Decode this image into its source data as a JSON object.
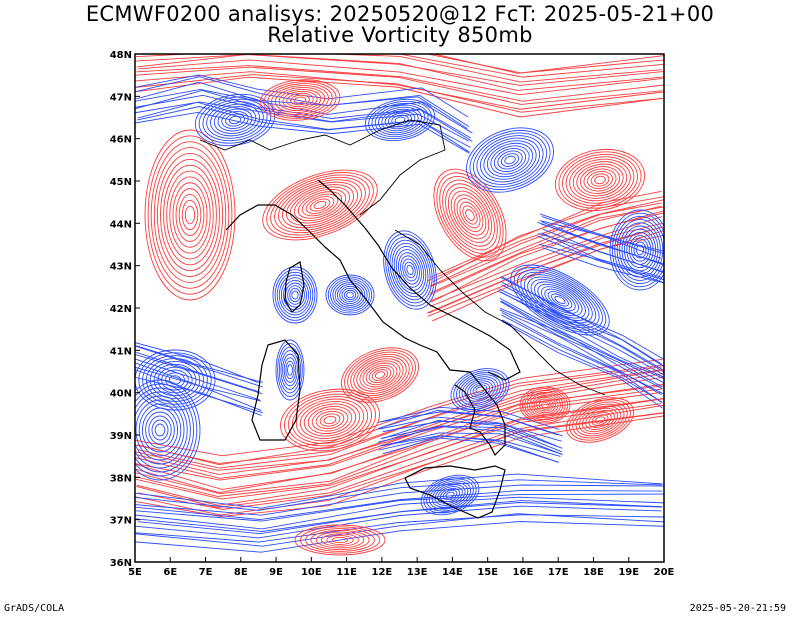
{
  "header": {
    "line1": "ECMWF0200 analisys: 20250520@12 FcT: 2025-05-21+00",
    "line2": "Relative Vorticity 850mb"
  },
  "map": {
    "lon_range": [
      5,
      20
    ],
    "lat_range": [
      36,
      48
    ],
    "lon_ticks": [
      "5E",
      "6E",
      "7E",
      "8E",
      "9E",
      "10E",
      "11E",
      "12E",
      "13E",
      "14E",
      "15E",
      "16E",
      "17E",
      "18E",
      "19E",
      "20E"
    ],
    "lat_ticks": [
      "36N",
      "37N",
      "38N",
      "39N",
      "40N",
      "41N",
      "42N",
      "43N",
      "44N",
      "45N",
      "46N",
      "47N",
      "48N"
    ],
    "colors": {
      "positive": "#ff3b3b",
      "negative": "#2b4cff",
      "coast": "#000000"
    }
  },
  "footer": {
    "left": "GrADS/COLA",
    "right": "2025-05-20-21:59"
  }
}
